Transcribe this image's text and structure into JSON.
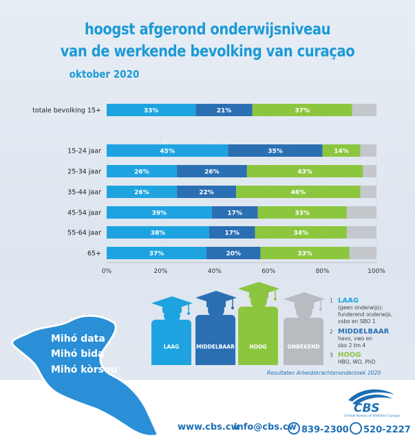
{
  "title": {
    "line1": "hoogst afgerond onderwijsniveau",
    "line2": "van de werkende bevolking van curaçao",
    "line3": "oktober 2020"
  },
  "colors": {
    "laag": "#1ea3e0",
    "middelbaar": "#2b6fb3",
    "hoog": "#8cc63f",
    "onbekend": "#c4c7cc",
    "brand": "#1c6fb5"
  },
  "chart_data": {
    "type": "bar",
    "orientation": "horizontal-stacked",
    "xlim": [
      0,
      100
    ],
    "xticks": [
      "0%",
      "20%",
      "40%",
      "60%",
      "80%",
      "100%"
    ],
    "categories": [
      "totale bevolking 15+",
      "15-24 jaar",
      "25-34 jaar",
      "35-44 jaar",
      "45-54 jaar",
      "55-64 jaar",
      "65+"
    ],
    "series": [
      {
        "name": "LAAG",
        "values": [
          33,
          45,
          26,
          26,
          39,
          38,
          37
        ],
        "labels": [
          "33%",
          "45%",
          "26%",
          "26%",
          "39%",
          "38%",
          "37%"
        ]
      },
      {
        "name": "MIDDELBAAR",
        "values": [
          21,
          35,
          26,
          22,
          17,
          17,
          20
        ],
        "labels": [
          "21%",
          "35%",
          "26%",
          "22%",
          "17%",
          "17%",
          "20%"
        ]
      },
      {
        "name": "HOOG",
        "values": [
          37,
          14,
          43,
          46,
          33,
          34,
          33
        ],
        "labels": [
          "37%",
          "14%",
          "43%",
          "46%",
          "33%",
          "34%",
          "33%"
        ]
      },
      {
        "name": "ONBEKEND",
        "values": [
          9,
          6,
          5,
          6,
          11,
          11,
          10
        ],
        "labels": [
          "",
          "",
          "",
          "",
          "",
          "",
          ""
        ]
      }
    ]
  },
  "people": [
    {
      "label": "LAAG",
      "color": "#1ea3e0"
    },
    {
      "label": "MIDDELBAAR",
      "color": "#2b6fb3"
    },
    {
      "label": "HOOG",
      "color": "#8cc63f"
    },
    {
      "label": "ONBEKEND",
      "color": "#b8bbc0"
    }
  ],
  "legend": [
    {
      "num": "1",
      "head": "LAAG",
      "lines": [
        "(geen onderwijs):",
        "funderend onderwijs,",
        "vsbo en SBO 1"
      ]
    },
    {
      "num": "2",
      "head": "MIDDELBAAR",
      "lines": [
        "havo, vwo en",
        "sbo 2 tm 4"
      ]
    },
    {
      "num": "3",
      "head": "HOOG",
      "lines": [
        "HBO, WO, PhD"
      ]
    }
  ],
  "source": "Resultaten Arbeidskrachtenonderzoek 2020",
  "slogan": [
    "Mihó data",
    "Mihó bida",
    "Mihó kòrsou"
  ],
  "footer": {
    "web": "www.cbs.cw",
    "email": "info@cbs.cw",
    "phone1": "839-2300",
    "phone2": "520-2227",
    "logo_text": "CBS",
    "logo_sub": "Central Bureau of Statistics Curaçao"
  }
}
